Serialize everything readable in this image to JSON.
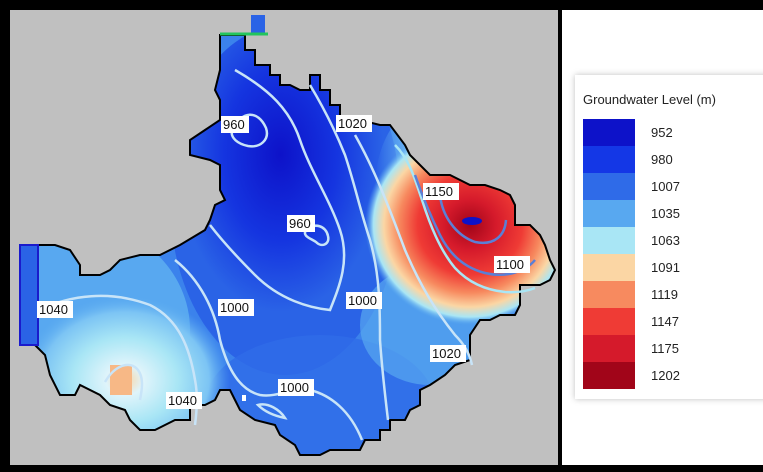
{
  "legend": {
    "title": "Groundwater Level (m)",
    "items": [
      {
        "value": "952",
        "color": "#0d12c9"
      },
      {
        "value": "980",
        "color": "#1437e6"
      },
      {
        "value": "1007",
        "color": "#2f6be8"
      },
      {
        "value": "1035",
        "color": "#58a8f0"
      },
      {
        "value": "1063",
        "color": "#a9e6f5"
      },
      {
        "value": "1091",
        "color": "#fbd6a4"
      },
      {
        "value": "1119",
        "color": "#f78a5f"
      },
      {
        "value": "1147",
        "color": "#ef3b35"
      },
      {
        "value": "1175",
        "color": "#d51a2b"
      },
      {
        "value": "1202",
        "color": "#a10519"
      }
    ]
  },
  "contour_labels": [
    "960",
    "1020",
    "960",
    "1150",
    "1100",
    "1040",
    "1000",
    "1000",
    "1020",
    "1000",
    "1040"
  ],
  "colors": {
    "outside_area": "#c0c0c0",
    "contour_line": "#c8e4f8",
    "boundary": "#000000"
  }
}
